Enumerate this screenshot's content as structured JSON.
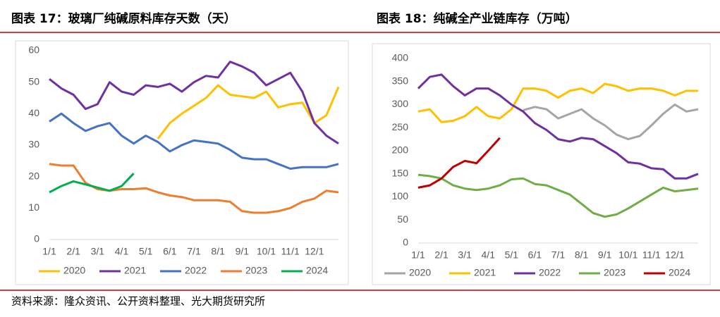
{
  "chart_data": [
    {
      "type": "line",
      "title": "图表 17：玻璃厂纯碱原料库存天数（天）",
      "categories": [
        "1/1",
        null,
        "2/1",
        null,
        "3/1",
        null,
        "4/1",
        null,
        "5/1",
        null,
        "6/1",
        null,
        "7/1",
        null,
        "8/1",
        null,
        "9/1",
        null,
        "10/1",
        null,
        "11/1",
        null,
        "12/1",
        null,
        null
      ],
      "ylim": [
        0,
        60
      ],
      "yticks": [
        0,
        10,
        20,
        30,
        40,
        50,
        60
      ],
      "grid": false,
      "legend": "bottom",
      "series": [
        {
          "name": "2020",
          "color": "#FFC000",
          "values": [
            null,
            null,
            null,
            null,
            null,
            null,
            null,
            null,
            null,
            32,
            37,
            40,
            42.5,
            45,
            49,
            46,
            45.5,
            45,
            47,
            42,
            43,
            43.5,
            37,
            39.5,
            48.5
          ]
        },
        {
          "name": "2021",
          "color": "#7030A0",
          "values": [
            51,
            48,
            46,
            41.5,
            43,
            50,
            47,
            46,
            49,
            48.5,
            49.5,
            47,
            50,
            52,
            51.5,
            56.5,
            55,
            53,
            49,
            51,
            53,
            47,
            37,
            33,
            30.5
          ]
        },
        {
          "name": "2022",
          "color": "#4472C4",
          "values": [
            37.5,
            40,
            37,
            34.5,
            36,
            37,
            33,
            30.5,
            33,
            31,
            28,
            30,
            31.5,
            31,
            30.5,
            28.5,
            26,
            25.5,
            25.5,
            24,
            22.5,
            23,
            23,
            23,
            24
          ]
        },
        {
          "name": "2023",
          "color": "#ED7D31",
          "values": [
            24,
            23.5,
            23.5,
            18,
            16,
            15.5,
            16,
            16,
            16.3,
            15,
            14,
            13.5,
            12.5,
            12.5,
            12.5,
            12,
            9,
            8.5,
            8.5,
            9,
            10,
            12,
            13,
            15.5,
            15
          ]
        },
        {
          "name": "2024",
          "color": "#00B050",
          "values": [
            15,
            17,
            18.5,
            17.5,
            16.5,
            15.5,
            17,
            21,
            null,
            null,
            null,
            null,
            null,
            null,
            null,
            null,
            null,
            null,
            null,
            null,
            null,
            null,
            null,
            null,
            null
          ]
        }
      ]
    },
    {
      "type": "line",
      "title": "图表 18：纯碱全产业链库存（万吨）",
      "categories": [
        "1/1",
        null,
        "2/1",
        null,
        "3/1",
        null,
        "4/1",
        null,
        "5/1",
        null,
        "6/1",
        null,
        "7/1",
        null,
        "8/1",
        null,
        "9/1",
        null,
        "10/1",
        null,
        "11/1",
        null,
        "12/1",
        null,
        null
      ],
      "ylim": [
        0,
        400
      ],
      "yticks": [
        0,
        50,
        100,
        150,
        200,
        250,
        300,
        350,
        400
      ],
      "grid": false,
      "legend": "bottom",
      "series": [
        {
          "name": "2020",
          "color": "#A5A5A5",
          "values": [
            null,
            null,
            null,
            null,
            null,
            null,
            null,
            null,
            null,
            288,
            295,
            290,
            270,
            280,
            290,
            270,
            255,
            235,
            225,
            232,
            255,
            280,
            300,
            285,
            290
          ]
        },
        {
          "name": "2021",
          "color": "#FFC000",
          "values": [
            285,
            290,
            262,
            265,
            275,
            295,
            275,
            270,
            290,
            335,
            335,
            330,
            315,
            330,
            335,
            325,
            345,
            340,
            330,
            335,
            335,
            330,
            320,
            330,
            330
          ]
        },
        {
          "name": "2022",
          "color": "#7030A0",
          "values": [
            335,
            360,
            365,
            340,
            320,
            335,
            335,
            320,
            300,
            285,
            260,
            245,
            225,
            220,
            228,
            225,
            210,
            195,
            175,
            172,
            162,
            160,
            140,
            140,
            150
          ]
        },
        {
          "name": "2023",
          "color": "#70AD47",
          "values": [
            148,
            145,
            140,
            125,
            118,
            115,
            118,
            125,
            138,
            140,
            128,
            125,
            115,
            105,
            85,
            65,
            57,
            62,
            75,
            90,
            105,
            120,
            112,
            115,
            118
          ]
        },
        {
          "name": "2024",
          "color": "#C00000",
          "values": [
            120,
            125,
            140,
            165,
            178,
            173,
            200,
            228,
            null,
            null,
            null,
            null,
            null,
            null,
            null,
            null,
            null,
            null,
            null,
            null,
            null,
            null,
            null,
            null,
            null
          ]
        }
      ]
    }
  ],
  "source": "资料来源：隆众资讯、公开资料整理、光大期货研究所"
}
